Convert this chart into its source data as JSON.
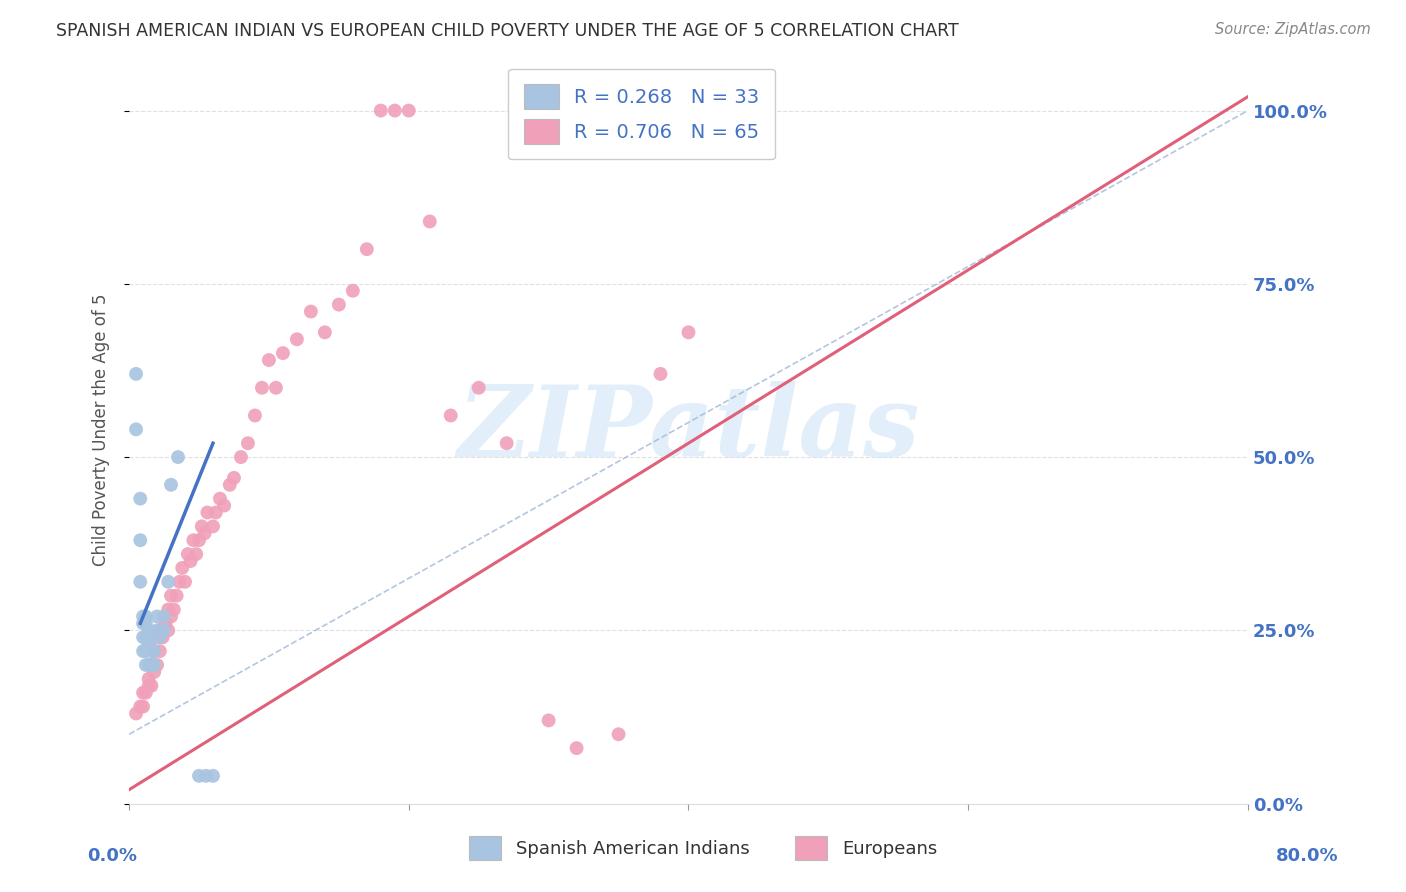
{
  "title": "SPANISH AMERICAN INDIAN VS EUROPEAN CHILD POVERTY UNDER THE AGE OF 5 CORRELATION CHART",
  "source": "Source: ZipAtlas.com",
  "ylabel": "Child Poverty Under the Age of 5",
  "ytick_labels": [
    "0.0%",
    "25.0%",
    "50.0%",
    "75.0%",
    "100.0%"
  ],
  "ytick_values": [
    0.0,
    0.25,
    0.5,
    0.75,
    1.0
  ],
  "legend_label1": "Spanish American Indians",
  "legend_label2": "Europeans",
  "legend_R1": "R = 0.268",
  "legend_N1": "N = 33",
  "legend_R2": "R = 0.706",
  "legend_N2": "N = 65",
  "color_blue": "#a8c4e0",
  "color_pink": "#f0a0b8",
  "watermark_color": "#d0e4f5",
  "blue_scatter_x": [
    0.005,
    0.005,
    0.008,
    0.008,
    0.008,
    0.01,
    0.01,
    0.01,
    0.01,
    0.012,
    0.012,
    0.012,
    0.012,
    0.012,
    0.014,
    0.014,
    0.014,
    0.016,
    0.016,
    0.016,
    0.018,
    0.018,
    0.02,
    0.02,
    0.022,
    0.025,
    0.025,
    0.028,
    0.03,
    0.035,
    0.05,
    0.055,
    0.06
  ],
  "blue_scatter_y": [
    0.62,
    0.54,
    0.44,
    0.38,
    0.32,
    0.27,
    0.26,
    0.24,
    0.22,
    0.27,
    0.26,
    0.24,
    0.22,
    0.2,
    0.25,
    0.23,
    0.2,
    0.24,
    0.22,
    0.2,
    0.22,
    0.2,
    0.27,
    0.25,
    0.24,
    0.27,
    0.25,
    0.32,
    0.46,
    0.5,
    0.04,
    0.04,
    0.04
  ],
  "pink_scatter_x": [
    0.005,
    0.008,
    0.01,
    0.01,
    0.012,
    0.014,
    0.014,
    0.016,
    0.016,
    0.018,
    0.018,
    0.02,
    0.02,
    0.022,
    0.022,
    0.024,
    0.026,
    0.028,
    0.028,
    0.03,
    0.03,
    0.032,
    0.034,
    0.036,
    0.038,
    0.04,
    0.042,
    0.044,
    0.046,
    0.048,
    0.05,
    0.052,
    0.054,
    0.056,
    0.06,
    0.062,
    0.065,
    0.068,
    0.072,
    0.075,
    0.08,
    0.085,
    0.09,
    0.095,
    0.1,
    0.105,
    0.11,
    0.12,
    0.13,
    0.14,
    0.15,
    0.16,
    0.17,
    0.18,
    0.19,
    0.2,
    0.215,
    0.23,
    0.25,
    0.27,
    0.3,
    0.32,
    0.35,
    0.38,
    0.4
  ],
  "pink_scatter_y": [
    0.13,
    0.14,
    0.14,
    0.16,
    0.16,
    0.17,
    0.18,
    0.17,
    0.2,
    0.19,
    0.22,
    0.2,
    0.24,
    0.22,
    0.25,
    0.24,
    0.26,
    0.25,
    0.28,
    0.27,
    0.3,
    0.28,
    0.3,
    0.32,
    0.34,
    0.32,
    0.36,
    0.35,
    0.38,
    0.36,
    0.38,
    0.4,
    0.39,
    0.42,
    0.4,
    0.42,
    0.44,
    0.43,
    0.46,
    0.47,
    0.5,
    0.52,
    0.56,
    0.6,
    0.64,
    0.6,
    0.65,
    0.67,
    0.71,
    0.68,
    0.72,
    0.74,
    0.8,
    1.0,
    1.0,
    1.0,
    0.84,
    0.56,
    0.6,
    0.52,
    0.12,
    0.08,
    0.1,
    0.62,
    0.68
  ],
  "blue_line_x": [
    0.008,
    0.06
  ],
  "blue_line_y": [
    0.26,
    0.52
  ],
  "pink_line_x": [
    0.0,
    0.8
  ],
  "pink_line_y": [
    0.02,
    1.02
  ],
  "dashed_line_x": [
    0.0,
    0.8
  ],
  "dashed_line_y": [
    0.1,
    1.0
  ],
  "xlim": [
    0.0,
    0.8
  ],
  "ylim": [
    0.0,
    1.08
  ],
  "background_color": "#ffffff",
  "grid_color": "#e0e0e0",
  "title_color": "#333333",
  "axis_label_color": "#4472c4",
  "right_ytick_color": "#4472c4"
}
